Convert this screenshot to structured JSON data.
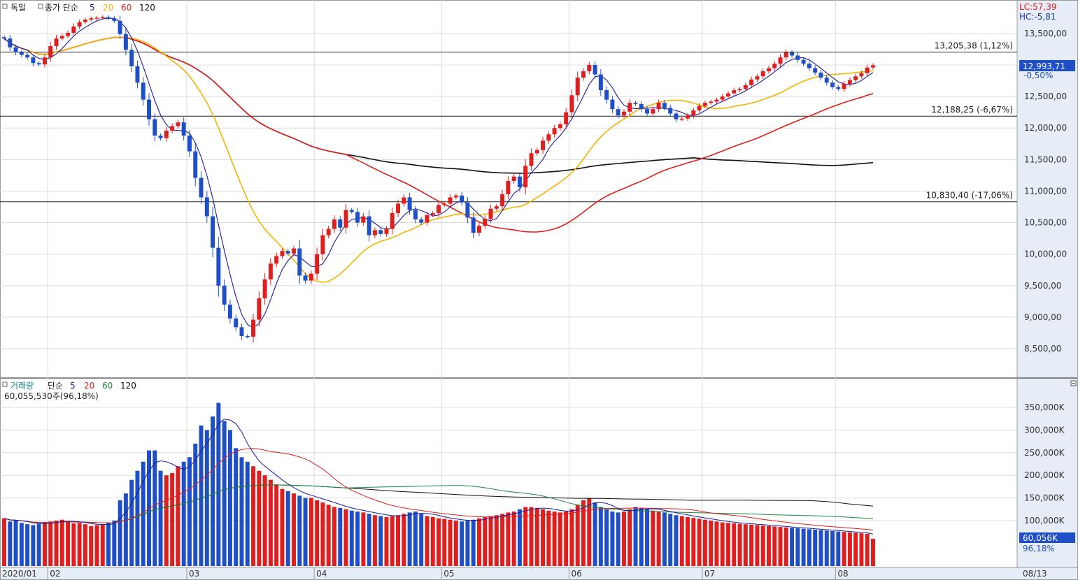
{
  "price_panel": {
    "title_market": "독일",
    "ma_label": "종가 단순",
    "ma_periods": [
      {
        "label": "5",
        "color": "#1a1aa0"
      },
      {
        "label": "20",
        "color": "#f5b400"
      },
      {
        "label": "60",
        "color": "#e11e1e"
      },
      {
        "label": "120",
        "color": "#111111"
      }
    ],
    "lc": "LC:57,39",
    "hc": "HC:-5,81",
    "current_price": "12,993,71",
    "current_change": "-0,50%",
    "hlines": [
      {
        "price": 13205.38,
        "label": "13,205,38 (1,12%)"
      },
      {
        "price": 12188.25,
        "label": "12,188,25 (-6,67%)"
      },
      {
        "price": 10830.4,
        "label": "10,830,40 (-17,06%)"
      }
    ],
    "y_ticks": [
      "13,500,00",
      "13,000,00",
      "12,500,00",
      "12,000,00",
      "11,500,00",
      "11,000,00",
      "10,500,00",
      "10,000,00",
      "9,500,00",
      "9,000,00",
      "8,500,00"
    ],
    "y_tick_values": [
      13500,
      13000,
      12500,
      12000,
      11500,
      11000,
      10500,
      10000,
      9500,
      9000,
      8500
    ]
  },
  "volume_panel": {
    "title": "거래량",
    "ma_label": "단순",
    "ma_periods": [
      {
        "label": "5",
        "color": "#1a1aa0"
      },
      {
        "label": "20",
        "color": "#e11e1e"
      },
      {
        "label": "60",
        "color": "#1a8a3a"
      },
      {
        "label": "120",
        "color": "#111111"
      }
    ],
    "info": "60,055,530주(96,18%)",
    "current_volume": "60,056K",
    "current_ratio": "96,18%",
    "y_ticks": [
      "350,000K",
      "300,000K",
      "250,000K",
      "200,000K",
      "150,000K",
      "100,000K"
    ],
    "y_tick_values": [
      350000,
      300000,
      250000,
      200000,
      150000,
      100000
    ]
  },
  "x_axis": {
    "labels": [
      {
        "idx": 0,
        "text": "2020/01"
      },
      {
        "idx": 8,
        "text": "02"
      },
      {
        "idx": 32,
        "text": "03"
      },
      {
        "idx": 54,
        "text": "04"
      },
      {
        "idx": 76,
        "text": "05"
      },
      {
        "idx": 98,
        "text": "06"
      },
      {
        "idx": 121,
        "text": "07"
      },
      {
        "idx": 144,
        "text": "08"
      }
    ],
    "end_label": "08/13"
  },
  "chart_data": {
    "type": "candlestick",
    "series_units": {
      "price": "index points",
      "volume": "thousand shares"
    },
    "close": [
      13420,
      13280,
      13200,
      13160,
      13120,
      13030,
      13010,
      13120,
      13300,
      13420,
      13460,
      13510,
      13610,
      13680,
      13720,
      13740,
      13750,
      13760,
      13740,
      13700,
      13490,
      13240,
      12980,
      12720,
      12450,
      12140,
      11880,
      11840,
      11960,
      12030,
      12090,
      11880,
      11630,
      11210,
      10900,
      10600,
      10100,
      9500,
      9200,
      8980,
      8840,
      8700,
      8690,
      8960,
      9300,
      9600,
      9850,
      9970,
      10050,
      10010,
      10090,
      9660,
      9580,
      9690,
      10000,
      10300,
      10400,
      10550,
      10420,
      10700,
      10670,
      10500,
      10600,
      10300,
      10380,
      10320,
      10400,
      10650,
      10800,
      10900,
      10700,
      10550,
      10500,
      10620,
      10650,
      10780,
      10800,
      10900,
      10930,
      10820,
      10580,
      10340,
      10450,
      10560,
      10720,
      10760,
      10950,
      11160,
      11230,
      11060,
      11400,
      11600,
      11650,
      11800,
      11900,
      12000,
      12060,
      12250,
      12520,
      12800,
      12900,
      13000,
      12850,
      12600,
      12450,
      12300,
      12200,
      12260,
      12400,
      12380,
      12300,
      12230,
      12300,
      12400,
      12320,
      12230,
      12140,
      12150,
      12200,
      12280,
      12350,
      12400,
      12420,
      12450,
      12500,
      12550,
      12600,
      12620,
      12680,
      12770,
      12820,
      12900,
      12950,
      13020,
      13120,
      13200,
      13150,
      13080,
      13020,
      12950,
      12880,
      12800,
      12720,
      12650,
      12620,
      12700,
      12760,
      12820,
      12870,
      12960,
      12994
    ],
    "volume": [
      105,
      98,
      100,
      95,
      92,
      90,
      93,
      96,
      98,
      100,
      102,
      97,
      94,
      95,
      92,
      88,
      90,
      92,
      95,
      100,
      145,
      160,
      190,
      210,
      230,
      255,
      255,
      210,
      200,
      205,
      220,
      230,
      240,
      270,
      310,
      300,
      330,
      360,
      320,
      300,
      260,
      240,
      230,
      220,
      210,
      200,
      190,
      180,
      170,
      165,
      160,
      155,
      150,
      150,
      145,
      140,
      135,
      130,
      128,
      125,
      122,
      120,
      118,
      115,
      112,
      110,
      108,
      110,
      112,
      115,
      118,
      120,
      115,
      110,
      108,
      105,
      104,
      102,
      100,
      98,
      100,
      102,
      105,
      108,
      110,
      112,
      115,
      118,
      120,
      125,
      130,
      130,
      128,
      125,
      122,
      120,
      118,
      120,
      125,
      135,
      145,
      150,
      140,
      130,
      125,
      120,
      118,
      120,
      125,
      130,
      128,
      125,
      122,
      120,
      118,
      115,
      112,
      110,
      108,
      106,
      104,
      102,
      100,
      98,
      96,
      95,
      94,
      93,
      92,
      91,
      90,
      89,
      88,
      87,
      86,
      85,
      84,
      83,
      82,
      81,
      80,
      79,
      78,
      77,
      76,
      75,
      74,
      73,
      72,
      71,
      60
    ]
  }
}
